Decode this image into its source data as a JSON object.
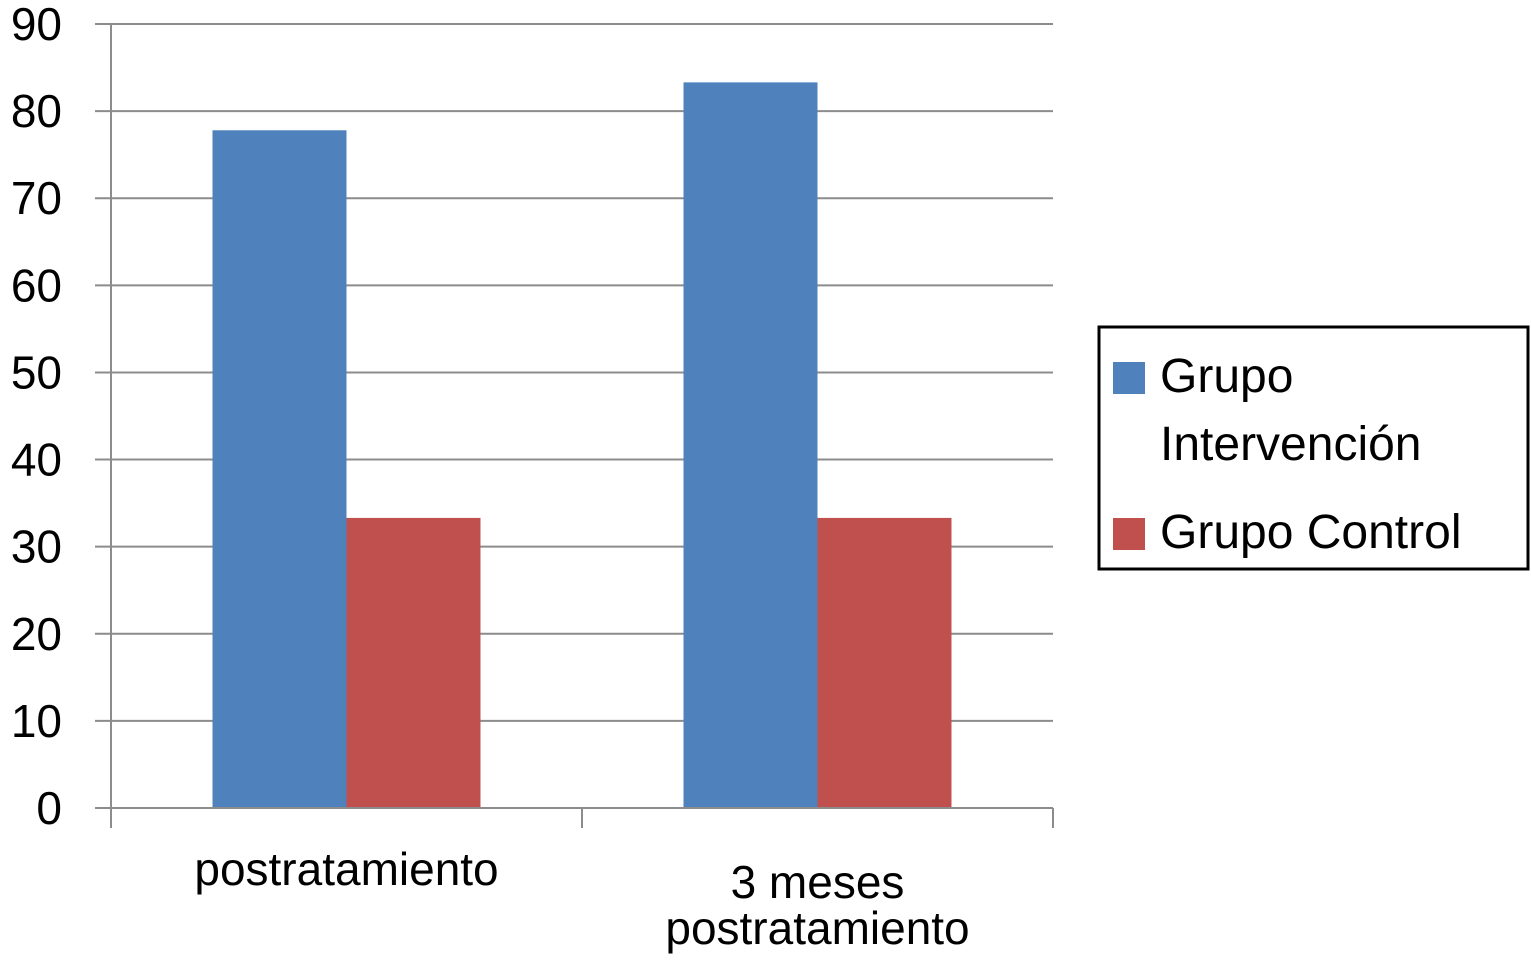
{
  "chart_data": {
    "type": "bar",
    "categories": [
      [
        "postratamiento"
      ],
      [
        "3 meses",
        "postratamiento"
      ]
    ],
    "series": [
      {
        "name": [
          "Grupo",
          "Intervención"
        ],
        "values": [
          77.8,
          83.3
        ],
        "color": "#4f81bd"
      },
      {
        "name": [
          "Grupo Control"
        ],
        "values": [
          33.3,
          33.3
        ],
        "color": "#c0504d"
      }
    ],
    "ylim": [
      0,
      90
    ],
    "yticks": [
      0,
      10,
      20,
      30,
      40,
      50,
      60,
      70,
      80,
      90
    ],
    "grid": true,
    "gridColor": "#8c8c8c",
    "axisColor": "#8c8c8c",
    "legend": "right"
  }
}
